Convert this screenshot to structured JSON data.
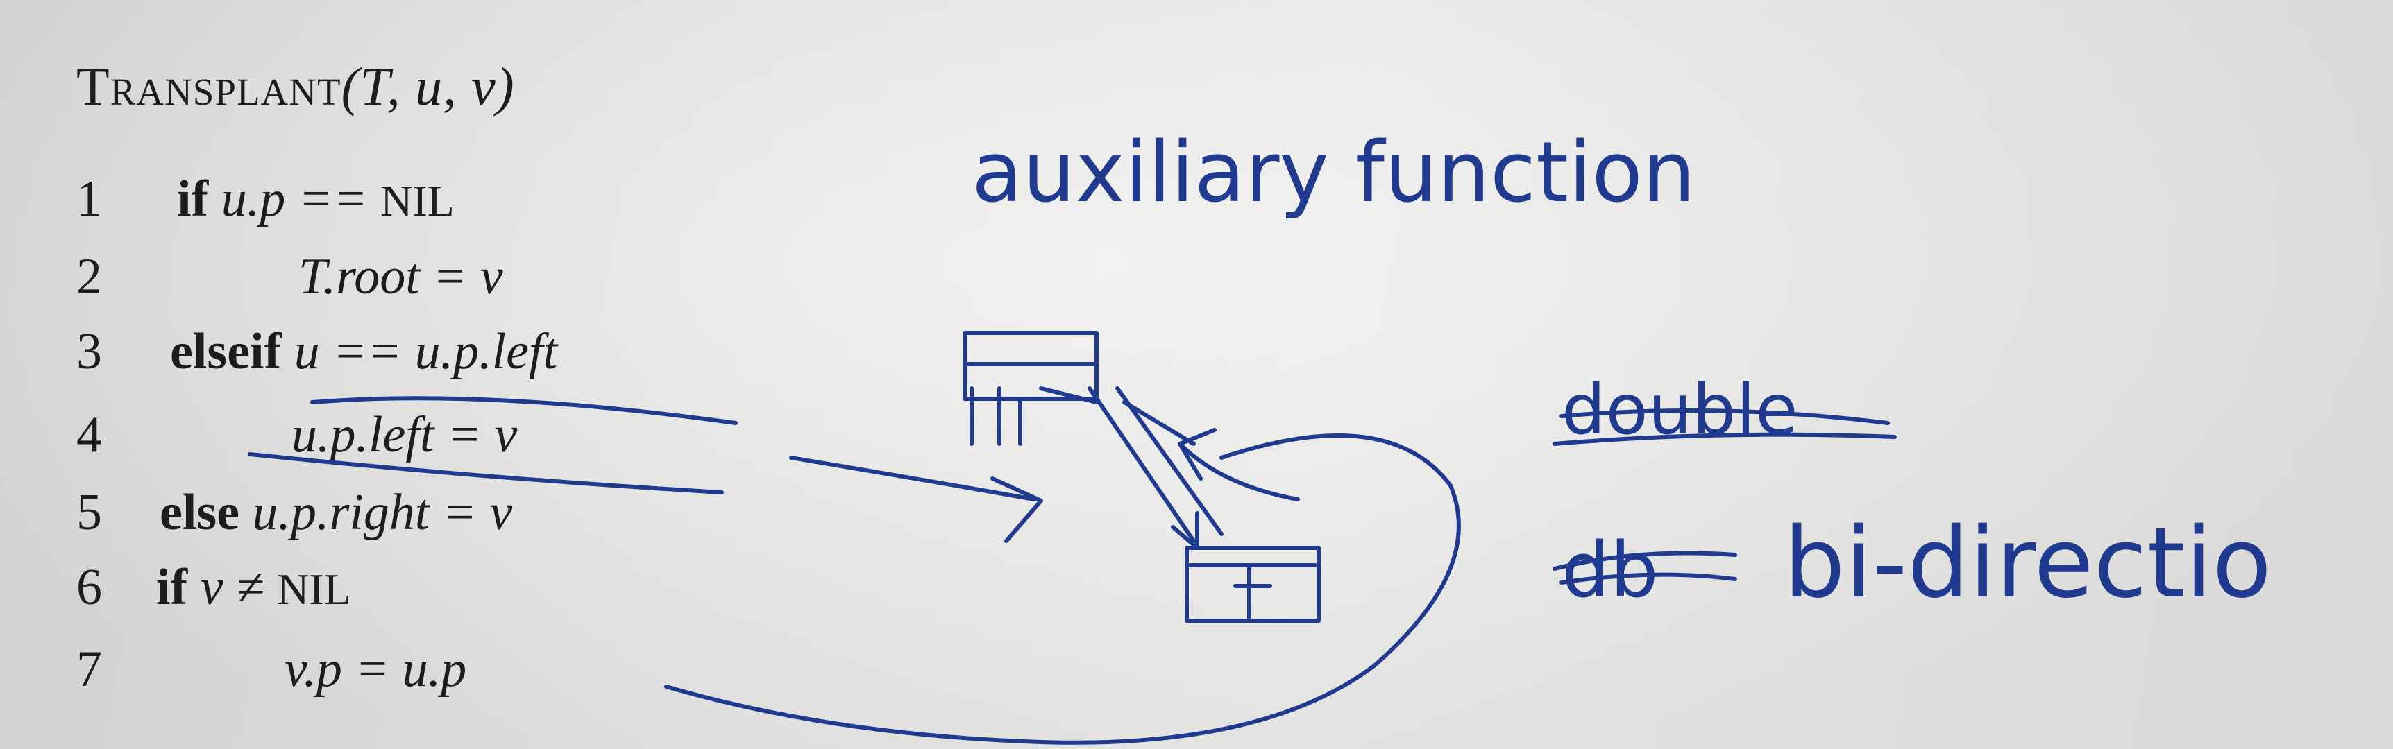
{
  "algorithm": {
    "name": "Transplant",
    "params": "(T, u, v)",
    "lines": [
      {
        "num": "1",
        "keyword": "if",
        "text": "u.p == ",
        "extra": "NIL"
      },
      {
        "num": "2",
        "keyword": "",
        "text": "T.root = v",
        "extra": ""
      },
      {
        "num": "3",
        "keyword": "elseif",
        "text": "u == u.p.left",
        "extra": ""
      },
      {
        "num": "4",
        "keyword": "",
        "text": "u.p.left = v",
        "extra": ""
      },
      {
        "num": "5",
        "keyword": "else",
        "text": "u.p.right = v",
        "extra": ""
      },
      {
        "num": "6",
        "keyword": "if",
        "text": "v ≠ ",
        "extra": "NIL"
      },
      {
        "num": "7",
        "keyword": "",
        "text": "v.p = u.p",
        "extra": ""
      }
    ]
  },
  "annotations": {
    "note_top": "auxiliary function",
    "crossed_word": "double",
    "note_right": "bi-directio"
  },
  "colors": {
    "ink": "#1f3a8f",
    "print": "#1d1d1d",
    "paper": "#e6e6e4"
  }
}
